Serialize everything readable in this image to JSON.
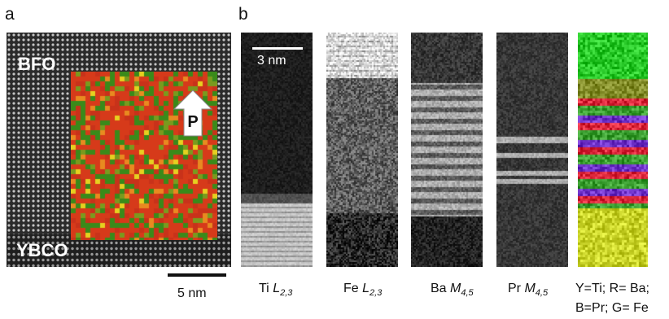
{
  "panel_a": {
    "letter": "a",
    "top_label": "BFO",
    "bottom_label": "YBCO",
    "arrow_label": "P",
    "scale_bar_label": "5 nm"
  },
  "panel_b": {
    "letter": "b",
    "scale_bar_label": "3 nm",
    "strips": [
      {
        "element": "Ti",
        "edge_main": "L",
        "edge_sub": "2,3"
      },
      {
        "element": "Fe",
        "edge_main": "L",
        "edge_sub": "2,3"
      },
      {
        "element": "Ba",
        "edge_main": "M",
        "edge_sub": "4,5"
      },
      {
        "element": "Pr",
        "edge_main": "M",
        "edge_sub": "4,5"
      }
    ],
    "composite_caption_line1": "Y=Ti; R= Ba;",
    "composite_caption_line2": "B=Pr; G= Fe"
  },
  "colors": {
    "map_red": "#d63a1a",
    "map_green": "#3a8a1a",
    "map_yellow": "#e6d020",
    "arrow_fill": "#ffffff"
  }
}
